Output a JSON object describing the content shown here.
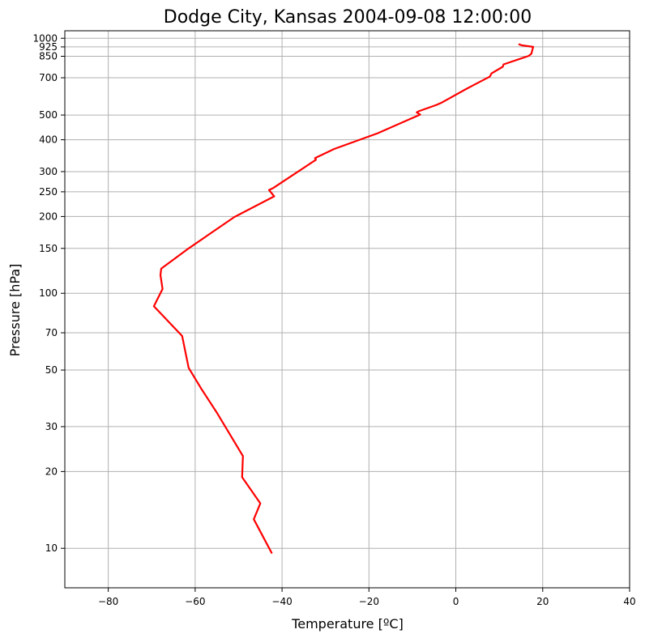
{
  "chart_data": {
    "type": "line",
    "title": "Dodge City, Kansas  2004-09-08 12:00:00",
    "xlabel": "Temperature [ºC]",
    "ylabel": "Pressure [hPa]",
    "xlim": [
      -90,
      40
    ],
    "ylim": [
      1070,
      7
    ],
    "y_scale": "log",
    "y_inverted": true,
    "grid": true,
    "x_ticks": [
      -80,
      -60,
      -40,
      -20,
      0,
      20,
      40
    ],
    "x_tick_labels": [
      "−80",
      "−60",
      "−40",
      "−20",
      "0",
      "20",
      "40"
    ],
    "y_ticks": [
      10,
      20,
      30,
      50,
      70,
      100,
      150,
      200,
      250,
      300,
      400,
      500,
      700,
      850,
      925,
      1000
    ],
    "y_tick_labels": [
      "10",
      "20",
      "30",
      "50",
      "70",
      "100",
      "150",
      "200",
      "250",
      "300",
      "400",
      "500",
      "700",
      "850",
      "925",
      "1000"
    ],
    "line_color": "#ff0000",
    "grid_color": "#b0b0b0",
    "series": [
      {
        "points": [
          [
            14.6,
            946
          ],
          [
            15.2,
            938
          ],
          [
            17.8,
            925
          ],
          [
            17.4,
            870
          ],
          [
            16.8,
            853
          ],
          [
            11.0,
            790
          ],
          [
            10.8,
            773
          ],
          [
            8.2,
            728
          ],
          [
            7.8,
            707
          ],
          [
            4.0,
            654
          ],
          [
            2.2,
            630
          ],
          [
            -3.2,
            560
          ],
          [
            -4.4,
            548
          ],
          [
            -8.6,
            517
          ],
          [
            -9.0,
            512
          ],
          [
            -8.2,
            502
          ],
          [
            -18.0,
            424
          ],
          [
            -28.0,
            368
          ],
          [
            -32.4,
            339
          ],
          [
            -32.2,
            334
          ],
          [
            -42.0,
            259
          ],
          [
            -43.0,
            254
          ],
          [
            -41.8,
            240
          ],
          [
            -51.0,
            199
          ],
          [
            -61.5,
            150
          ],
          [
            -67.8,
            125
          ],
          [
            -68.0,
            118
          ],
          [
            -67.5,
            104
          ],
          [
            -69.5,
            89
          ],
          [
            -63.0,
            68
          ],
          [
            -61.5,
            51
          ],
          [
            -58.5,
            42
          ],
          [
            -55.0,
            34
          ],
          [
            -52.0,
            28
          ],
          [
            -49.0,
            23
          ],
          [
            -49.2,
            19
          ],
          [
            -45.0,
            15
          ],
          [
            -46.5,
            13
          ],
          [
            -42.4,
            9.6
          ]
        ]
      }
    ]
  }
}
